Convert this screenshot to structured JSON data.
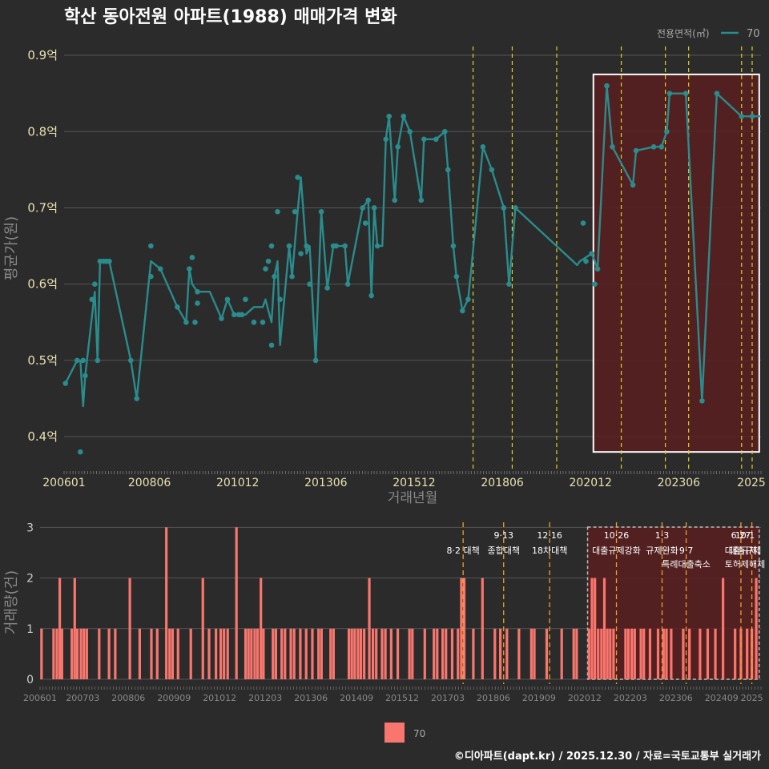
{
  "title": "학산 동아전원 아파트(1988) 매매가격 변화",
  "footer": "©디아파트(dapt.kr) / 2025.12.30 / 자료=국토교통부 실거래가",
  "colors": {
    "background": "#2b2b2b",
    "grid": "#555555",
    "line": "#2a8c8c",
    "bar": "#f8766d",
    "highlight_fill": "#5a1e20",
    "policy_yellow": "#e0d020",
    "policy_orange": "#f0a020",
    "title": "#ffffff",
    "axis_text_top": "#e8e0b0",
    "axis_text_bottom": "#888888"
  },
  "chart_data": [
    {
      "type": "line",
      "title": "학산 동아전원 아파트(1988) 매매가격 변화",
      "xlabel": "거래년월",
      "ylabel": "평균가(원)",
      "ylim": [
        0.355,
        0.92
      ],
      "xlim": [
        2006.0,
        2025.75
      ],
      "x_tick_labels": [
        "200601",
        "200806",
        "201012",
        "201306",
        "201512",
        "201806",
        "202012",
        "202306",
        "2025"
      ],
      "x_tick_values": [
        2006.0,
        2008.42,
        2010.92,
        2013.42,
        2015.92,
        2018.42,
        2020.92,
        2023.42,
        2025.5
      ],
      "y_tick_labels": [
        "0.4억",
        "0.5억",
        "0.6억",
        "0.7억",
        "0.8억",
        "0.9억"
      ],
      "y_tick_values": [
        0.4,
        0.5,
        0.6,
        0.7,
        0.8,
        0.9
      ],
      "legend_title": "전용면적(㎡)",
      "legend_label": "70",
      "legend_position": "top-right",
      "series": [
        {
          "name": "70",
          "line_x": [
            2006.04,
            2006.37,
            2006.46,
            2006.54,
            2006.6,
            2006.87,
            2006.95,
            2007.02,
            2007.12,
            2007.2,
            2007.28,
            2007.89,
            2008.06,
            2008.46,
            2008.73,
            2009.21,
            2009.46,
            2009.55,
            2009.63,
            2009.78,
            2010.13,
            2010.46,
            2010.63,
            2010.82,
            2010.95,
            2011.04,
            2011.14,
            2011.38,
            2011.63,
            2011.71,
            2011.79,
            2011.88,
            2011.96,
            2012.05,
            2012.12,
            2012.38,
            2012.46,
            2012.62,
            2012.71,
            2012.87,
            2012.96,
            2013.13,
            2013.29,
            2013.46,
            2013.63,
            2013.71,
            2013.96,
            2014.04,
            2014.46,
            2014.54,
            2014.62,
            2014.71,
            2014.79,
            2014.88,
            2015.02,
            2015.12,
            2015.21,
            2015.37,
            2015.46,
            2015.62,
            2015.8,
            2016.12,
            2016.2,
            2016.54,
            2016.79,
            2016.88,
            2017.03,
            2017.12,
            2017.29,
            2017.45,
            2017.54,
            2017.87,
            2018.12,
            2018.46,
            2018.61,
            2018.79,
            2020.54,
            2020.62,
            2020.95,
            2021.04,
            2021.12,
            2021.38,
            2021.54,
            2022.12,
            2022.21,
            2022.71,
            2022.93,
            2023.08,
            2023.16,
            2023.62,
            2024.08,
            2024.5,
            2025.2,
            2025.5,
            2025.75
          ],
          "line_y": [
            0.47,
            0.5,
            0.5,
            0.44,
            0.48,
            0.59,
            0.5,
            0.63,
            0.63,
            0.63,
            0.63,
            0.5,
            0.45,
            0.63,
            0.62,
            0.57,
            0.55,
            0.62,
            0.6,
            0.59,
            0.59,
            0.555,
            0.58,
            0.56,
            0.56,
            0.56,
            0.56,
            0.57,
            0.57,
            0.58,
            0.565,
            0.55,
            0.61,
            0.63,
            0.52,
            0.65,
            0.61,
            0.695,
            0.74,
            0.64,
            0.65,
            0.5,
            0.695,
            0.595,
            0.65,
            0.65,
            0.65,
            0.6,
            0.7,
            0.705,
            0.71,
            0.585,
            0.7,
            0.65,
            0.65,
            0.79,
            0.82,
            0.71,
            0.78,
            0.82,
            0.8,
            0.71,
            0.79,
            0.79,
            0.8,
            0.75,
            0.65,
            0.61,
            0.565,
            0.58,
            0.62,
            0.78,
            0.75,
            0.7,
            0.6,
            0.7,
            0.625,
            0.63,
            0.64,
            0.63,
            0.62,
            0.86,
            0.78,
            0.73,
            0.775,
            0.78,
            0.78,
            0.8,
            0.85,
            0.85,
            0.447,
            0.85,
            0.82,
            0.82,
            0.82
          ],
          "points_x": [
            2006.04,
            2006.37,
            2006.46,
            2006.54,
            2006.6,
            2006.79,
            2006.87,
            2006.95,
            2007.02,
            2007.12,
            2007.2,
            2007.28,
            2007.89,
            2008.06,
            2008.46,
            2008.46,
            2008.73,
            2009.21,
            2009.46,
            2009.55,
            2009.63,
            2009.71,
            2009.78,
            2009.78,
            2010.46,
            2010.63,
            2010.82,
            2010.95,
            2011.04,
            2011.14,
            2011.38,
            2011.63,
            2011.71,
            2011.79,
            2011.88,
            2011.88,
            2011.96,
            2012.05,
            2012.12,
            2012.38,
            2012.46,
            2012.54,
            2012.62,
            2012.71,
            2012.87,
            2012.96,
            2013.13,
            2013.29,
            2013.46,
            2013.63,
            2013.71,
            2013.96,
            2014.04,
            2014.46,
            2014.54,
            2014.62,
            2014.71,
            2014.79,
            2014.88,
            2015.12,
            2015.21,
            2015.37,
            2015.46,
            2015.62,
            2015.8,
            2016.12,
            2016.2,
            2016.54,
            2016.79,
            2016.88,
            2017.03,
            2017.12,
            2017.29,
            2017.45,
            2017.87,
            2018.12,
            2018.46,
            2018.61,
            2018.79,
            2020.71,
            2020.79,
            2020.95,
            2021.04,
            2021.12,
            2021.38,
            2021.54,
            2022.12,
            2022.21,
            2022.71,
            2022.93,
            2023.08,
            2023.16,
            2023.62,
            2024.08,
            2024.5,
            2025.2,
            2025.5
          ],
          "points_y": [
            0.47,
            0.5,
            0.38,
            0.5,
            0.48,
            0.58,
            0.6,
            0.5,
            0.63,
            0.63,
            0.63,
            0.63,
            0.5,
            0.45,
            0.65,
            0.61,
            0.62,
            0.57,
            0.55,
            0.62,
            0.635,
            0.55,
            0.59,
            0.575,
            0.555,
            0.58,
            0.56,
            0.56,
            0.56,
            0.58,
            0.55,
            0.55,
            0.62,
            0.63,
            0.52,
            0.65,
            0.61,
            0.695,
            0.58,
            0.65,
            0.61,
            0.695,
            0.74,
            0.64,
            0.65,
            0.6,
            0.5,
            0.695,
            0.595,
            0.65,
            0.65,
            0.65,
            0.6,
            0.7,
            0.68,
            0.71,
            0.585,
            0.7,
            0.65,
            0.79,
            0.82,
            0.71,
            0.78,
            0.82,
            0.8,
            0.71,
            0.79,
            0.79,
            0.8,
            0.75,
            0.65,
            0.61,
            0.565,
            0.58,
            0.78,
            0.75,
            0.7,
            0.6,
            0.7,
            0.68,
            0.63,
            0.64,
            0.6,
            0.62,
            0.86,
            0.78,
            0.73,
            0.775,
            0.78,
            0.78,
            0.8,
            0.85,
            0.85,
            0.447,
            0.85,
            0.82,
            0.82
          ]
        }
      ],
      "highlight_region": [
        2021.0,
        2025.7
      ],
      "highlight_range": [
        0.38,
        0.875
      ],
      "policy_lines": [
        2017.59,
        2018.7,
        2019.96,
        2021.79,
        2023.04,
        2023.7,
        2025.2,
        2025.5,
        2025.8
      ]
    },
    {
      "type": "bar",
      "xlabel": "",
      "ylabel": "거래량(건)",
      "ylim": [
        0,
        3.1
      ],
      "xlim": [
        2006.0,
        2025.75
      ],
      "x_tick_labels": [
        "200601",
        "200703",
        "200806",
        "200909",
        "201012",
        "201203",
        "201306",
        "201409",
        "201512",
        "201703",
        "201806",
        "201909",
        "202012",
        "202203",
        "202306",
        "202409",
        "2025"
      ],
      "x_tick_values": [
        2006.0,
        2007.17,
        2008.42,
        2009.67,
        2010.92,
        2012.17,
        2013.42,
        2014.67,
        2015.92,
        2017.17,
        2018.42,
        2019.67,
        2020.92,
        2022.17,
        2023.42,
        2024.67,
        2025.5
      ],
      "y_tick_labels": [
        "0",
        "1",
        "2",
        "3"
      ],
      "y_tick_values": [
        0,
        1,
        2,
        3
      ],
      "legend_label": "70",
      "legend_position": "bottom",
      "series": [
        {
          "name": "70",
          "x": [
            2006.04,
            2006.37,
            2006.46,
            2006.54,
            2006.6,
            2006.87,
            2006.95,
            2007.02,
            2007.12,
            2007.2,
            2007.28,
            2007.62,
            2007.89,
            2008.06,
            2008.46,
            2008.73,
            2009.05,
            2009.21,
            2009.46,
            2009.55,
            2009.63,
            2009.78,
            2010.13,
            2010.46,
            2010.63,
            2010.82,
            2010.95,
            2011.04,
            2011.14,
            2011.38,
            2011.63,
            2011.71,
            2011.79,
            2011.88,
            2011.96,
            2012.05,
            2012.12,
            2012.38,
            2012.46,
            2012.62,
            2012.71,
            2012.87,
            2012.96,
            2013.13,
            2013.29,
            2013.46,
            2013.63,
            2013.71,
            2013.96,
            2014.04,
            2014.46,
            2014.54,
            2014.62,
            2014.71,
            2014.79,
            2014.88,
            2015.02,
            2015.12,
            2015.21,
            2015.37,
            2015.46,
            2015.62,
            2015.8,
            2016.12,
            2016.2,
            2016.54,
            2016.79,
            2016.88,
            2017.03,
            2017.12,
            2017.29,
            2017.45,
            2017.54,
            2017.62,
            2017.87,
            2018.12,
            2018.46,
            2018.61,
            2018.79,
            2019.12,
            2019.46,
            2019.54,
            2019.88,
            2020.29,
            2020.62,
            2020.7,
            2021.04,
            2021.12,
            2021.2,
            2021.29,
            2021.38,
            2021.46,
            2021.54,
            2021.62,
            2021.71,
            2022.04,
            2022.12,
            2022.21,
            2022.29,
            2022.46,
            2022.54,
            2022.71,
            2022.93,
            2023.08,
            2023.16,
            2023.29,
            2023.62,
            2023.79,
            2024.08,
            2024.29,
            2024.5,
            2024.71,
            2025.04,
            2025.2,
            2025.37,
            2025.5,
            2025.62
          ],
          "values": [
            1,
            1,
            1,
            2,
            1,
            1,
            2,
            1,
            1,
            1,
            1,
            1,
            1,
            1,
            2,
            1,
            1,
            1,
            3,
            1,
            1,
            1,
            1,
            2,
            1,
            1,
            1,
            1,
            1,
            3,
            1,
            1,
            1,
            1,
            1,
            2,
            1,
            1,
            1,
            1,
            1,
            1,
            1,
            1,
            1,
            1,
            1,
            1,
            1,
            1,
            1,
            1,
            1,
            1,
            1,
            1,
            2,
            1,
            1,
            1,
            1,
            1,
            1,
            1,
            1,
            1,
            1,
            1,
            1,
            1,
            1,
            1,
            2,
            2,
            1,
            2,
            1,
            1,
            1,
            1,
            1,
            1,
            1,
            1,
            1,
            1,
            1,
            2,
            2,
            1,
            1,
            2,
            1,
            1,
            1,
            1,
            1,
            1,
            1,
            1,
            1,
            1,
            1,
            1,
            1,
            1,
            1,
            1,
            1,
            1,
            1,
            2,
            1,
            1,
            1,
            1,
            2
          ]
        }
      ],
      "highlight_region": [
        2021.0,
        2025.7
      ],
      "policy_lines": [
        2017.59,
        2018.7,
        2019.96,
        2021.79,
        2023.04,
        2023.7,
        2025.2,
        2025.5,
        2025.8
      ],
      "annotations": [
        {
          "x": 2017.59,
          "row": 1,
          "text": "8·2 대책"
        },
        {
          "x": 2018.7,
          "row": 0,
          "text": "9·13"
        },
        {
          "x": 2018.7,
          "row": 1,
          "text": "종합대책"
        },
        {
          "x": 2019.96,
          "row": 0,
          "text": "12·16"
        },
        {
          "x": 2019.96,
          "row": 1,
          "text": "18차대책"
        },
        {
          "x": 2021.79,
          "row": 0,
          "text": "10·26"
        },
        {
          "x": 2021.79,
          "row": 1,
          "text": "대출규제강화"
        },
        {
          "x": 2023.04,
          "row": 0,
          "text": "1·3"
        },
        {
          "x": 2023.04,
          "row": 1,
          "text": "규제완화"
        },
        {
          "x": 2023.7,
          "row": 1,
          "text": "9·7"
        },
        {
          "x": 2023.7,
          "row": 2,
          "text": "특례대출축소"
        },
        {
          "x": 2025.2,
          "row": 0,
          "text": "6·27"
        },
        {
          "x": 2025.2,
          "row": 1,
          "text": "대출규제"
        },
        {
          "x": 2025.5,
          "row": 0,
          "text": "10·1"
        },
        {
          "x": 2025.5,
          "row": 1,
          "text": "대출규제"
        },
        {
          "x": 2025.45,
          "row": 2,
          "text": "토허제해제"
        }
      ]
    }
  ]
}
